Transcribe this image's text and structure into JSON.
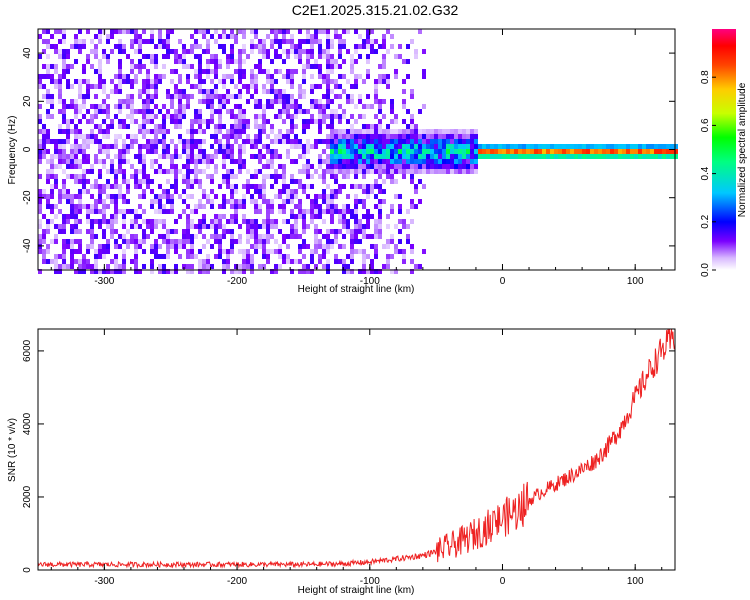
{
  "figure_title": "C2E1.2025.315.21.02.G32",
  "chart_data": [
    {
      "type": "heatmap",
      "title": "C2E1.2025.315.21.02.G32",
      "xlabel": "Height of straight line (km)",
      "ylabel": "Frequency (Hz)",
      "xlim": [
        -350,
        130
      ],
      "ylim": [
        -50,
        50
      ],
      "xticks": [
        -300,
        -200,
        -100,
        0,
        100
      ],
      "yticks": [
        -40,
        -20,
        0,
        20,
        40
      ],
      "colorbar": {
        "label": "Normalized spectral amplitude",
        "range": [
          0,
          1
        ],
        "ticks": [
          0.0,
          0.2,
          0.4,
          0.6,
          0.8
        ]
      },
      "features": [
        {
          "name": "noise_floor",
          "x_range": [
            -350,
            -60
          ],
          "y_range": [
            -50,
            50
          ],
          "amplitude": 0.15
        },
        {
          "name": "signal_onset",
          "x_range": [
            -130,
            -20
          ],
          "center_freq": 0,
          "spread_hz": 10,
          "amplitude": 0.4
        },
        {
          "name": "carrier_line",
          "x_range": [
            -20,
            130
          ],
          "center_freq": 0,
          "amplitude": 0.95
        }
      ]
    },
    {
      "type": "line",
      "xlabel": "Height of straight line (km)",
      "ylabel": "SNR (10 * v/v)",
      "xlim": [
        -350,
        130
      ],
      "ylim": [
        0,
        6600
      ],
      "xticks": [
        -300,
        -200,
        -100,
        0,
        100
      ],
      "yticks": [
        0,
        2000,
        4000,
        6000
      ],
      "series": [
        {
          "name": "SNR",
          "color": "#ee2222",
          "x": [
            -350,
            -300,
            -250,
            -200,
            -150,
            -120,
            -100,
            -80,
            -60,
            -50,
            -40,
            -30,
            -20,
            -10,
            0,
            5,
            10,
            20,
            30,
            40,
            50,
            60,
            70,
            80,
            90,
            100,
            110,
            120,
            130
          ],
          "y": [
            150,
            150,
            150,
            150,
            150,
            170,
            220,
            300,
            400,
            500,
            650,
            800,
            1000,
            1200,
            1400,
            1500,
            1600,
            1900,
            2150,
            2350,
            2550,
            2750,
            3000,
            3400,
            3950,
            4700,
            5400,
            6000,
            6400
          ]
        }
      ]
    }
  ]
}
